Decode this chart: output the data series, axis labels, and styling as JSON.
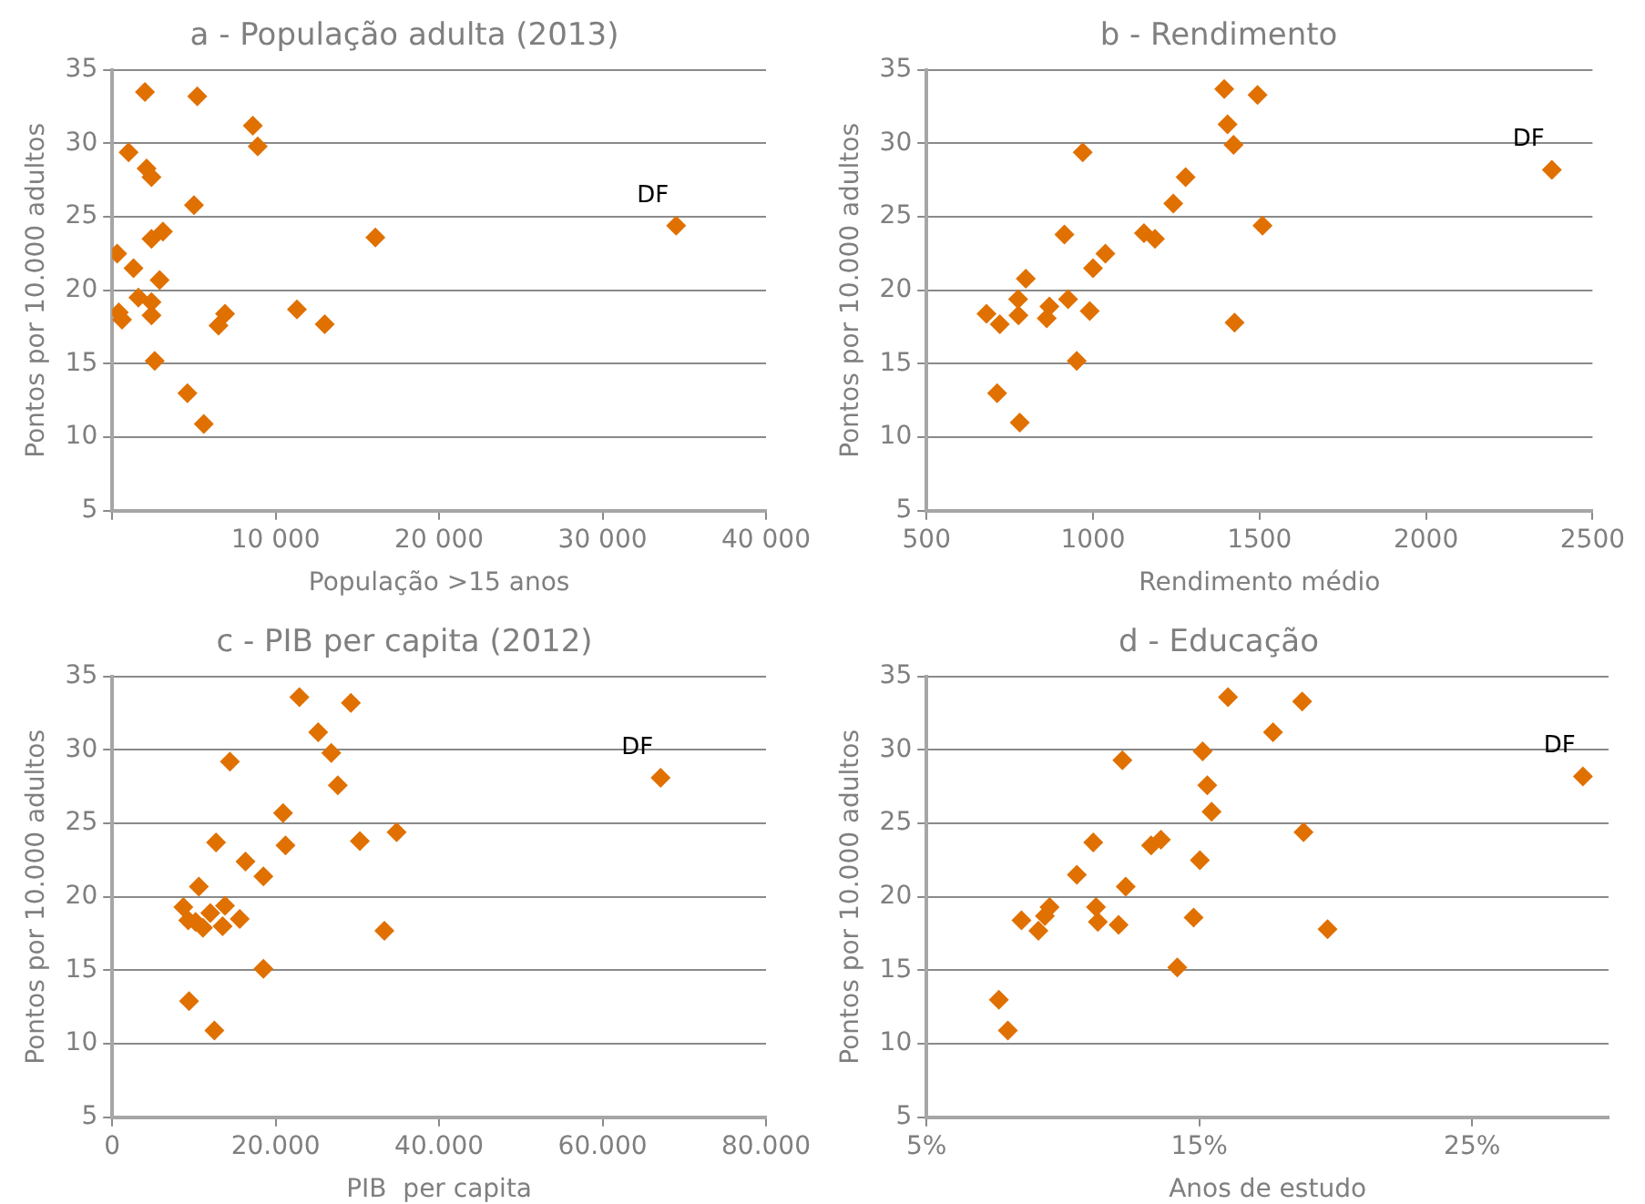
{
  "chart_data": [
    {
      "type": "scatter",
      "title": "a - População adulta (2013)",
      "xlabel": "População >15 anos",
      "ylabel": "Pontos por 10.000 adultos",
      "color": "#e07000",
      "marker": "diamond",
      "grid": "y",
      "x": [
        2000,
        5200,
        8600,
        8900,
        1000,
        2100,
        2400,
        5000,
        34500,
        16100,
        2400,
        3100,
        300,
        1300,
        2900,
        1600,
        2400,
        400,
        600,
        2400,
        6900,
        6500,
        11300,
        13000,
        2600,
        4600,
        5600
      ],
      "values": [
        33.5,
        33.2,
        31.2,
        29.8,
        29.4,
        28.3,
        27.7,
        25.8,
        24.4,
        23.6,
        23.5,
        24.0,
        22.5,
        21.5,
        20.7,
        19.5,
        19.2,
        18.5,
        18.0,
        18.3,
        18.4,
        17.6,
        18.7,
        17.7,
        15.2,
        13.0,
        10.9
      ],
      "xlim": [
        0,
        40000
      ],
      "xticks": [
        {
          "value": 0,
          "label": null
        },
        {
          "value": 10000,
          "label": "10 000"
        },
        {
          "value": 20000,
          "label": "20 000"
        },
        {
          "value": 30000,
          "label": "30 000"
        },
        {
          "value": 40000,
          "label": "40 000"
        }
      ],
      "ylim": [
        5,
        35
      ],
      "yticks": [
        5,
        10,
        15,
        20,
        25,
        30,
        35
      ],
      "annotations": [
        {
          "text": "DF",
          "x": 34500,
          "y": 24.4
        }
      ]
    },
    {
      "type": "scatter",
      "title": "b - Rendimento",
      "xlabel": "Rendimento médio",
      "ylabel": "Pontos por 10.000 adultos",
      "color": "#e07000",
      "marker": "diamond",
      "grid": "y",
      "x": [
        1394,
        1494,
        1404,
        1422,
        969,
        2378,
        1278,
        1241,
        1509,
        914,
        1153,
        1186,
        1037,
        1000,
        798,
        925,
        775,
        869,
        680,
        776,
        990,
        861,
        720,
        1425,
        951,
        712,
        780
      ],
      "values": [
        33.7,
        33.3,
        31.3,
        29.9,
        29.4,
        28.2,
        27.7,
        25.9,
        24.4,
        23.8,
        23.9,
        23.5,
        22.5,
        21.5,
        20.8,
        19.4,
        19.4,
        18.9,
        18.4,
        18.3,
        18.6,
        18.1,
        17.7,
        17.8,
        15.2,
        13.0,
        11.0
      ],
      "xlim": [
        500,
        2500
      ],
      "xticks": [
        500,
        1000,
        1500,
        2000,
        2500
      ],
      "ylim": [
        5,
        35
      ],
      "yticks": [
        5,
        10,
        15,
        20,
        25,
        30,
        35
      ],
      "annotations": [
        {
          "text": "DF",
          "x": 2378,
          "y": 28.2
        }
      ]
    },
    {
      "type": "scatter",
      "title": "c - PIB per capita (2012)",
      "xlabel": "PIB  per capita",
      "ylabel": "Pontos por 10.000 adultos",
      "color": "#e07000",
      "marker": "diamond",
      "grid": "y",
      "x": [
        22900,
        29200,
        25200,
        26800,
        14400,
        67100,
        27600,
        20900,
        30300,
        34800,
        12700,
        21200,
        16300,
        18500,
        10600,
        8700,
        13800,
        9300,
        12000,
        11100,
        13500,
        15600,
        33300,
        18500,
        9400,
        12500,
        10200
      ],
      "values": [
        33.6,
        33.2,
        31.2,
        29.8,
        29.2,
        28.1,
        27.6,
        25.7,
        23.8,
        24.4,
        23.7,
        23.5,
        22.4,
        21.4,
        20.7,
        19.3,
        19.4,
        18.4,
        18.9,
        17.9,
        18.0,
        18.5,
        17.7,
        15.1,
        12.9,
        10.9,
        18.3
      ],
      "xlim": [
        0,
        80000
      ],
      "xticks": [
        0,
        {
          "value": 20000,
          "label": "20.000"
        },
        {
          "value": 40000,
          "label": "40.000"
        },
        {
          "value": 60000,
          "label": "60.000"
        },
        {
          "value": 80000,
          "label": "80.000"
        }
      ],
      "ylim": [
        5,
        35
      ],
      "yticks": [
        5,
        10,
        15,
        20,
        25,
        30,
        35
      ],
      "annotations": [
        {
          "text": "DF",
          "x": 67100,
          "y": 28.1
        }
      ]
    },
    {
      "type": "scatter",
      "title": "d - Educação",
      "xlabel": "Anos de estudo",
      "ylabel": "Pontos por 10.000 adultos",
      "color": "#e07000",
      "marker": "diamond",
      "grid": "y",
      "x": [
        16.05,
        18.77,
        17.7,
        15.12,
        12.18,
        29.06,
        15.29,
        15.45,
        18.82,
        11.11,
        13.59,
        13.23,
        15.02,
        10.51,
        12.3,
        9.51,
        11.21,
        9.34,
        8.48,
        9.1,
        11.28,
        12.04,
        14.79,
        19.7,
        14.19,
        7.65,
        7.98
      ],
      "values": [
        33.6,
        33.3,
        31.2,
        29.9,
        29.3,
        28.2,
        27.6,
        25.8,
        24.4,
        23.7,
        23.9,
        23.5,
        22.5,
        21.5,
        20.7,
        19.3,
        19.3,
        18.7,
        18.4,
        17.7,
        18.3,
        18.1,
        18.6,
        17.8,
        15.2,
        13.0,
        10.9
      ],
      "xlim": [
        5,
        30
      ],
      "xticks": [
        {
          "value": 5,
          "label": "5%"
        },
        {
          "value": 15,
          "label": "15%"
        },
        {
          "value": 25,
          "label": "25%"
        }
      ],
      "ylim": [
        5,
        35
      ],
      "yticks": [
        5,
        10,
        15,
        20,
        25,
        30,
        35
      ],
      "annotations": [
        {
          "text": "DF",
          "x": 29.06,
          "y": 28.2
        }
      ]
    }
  ]
}
